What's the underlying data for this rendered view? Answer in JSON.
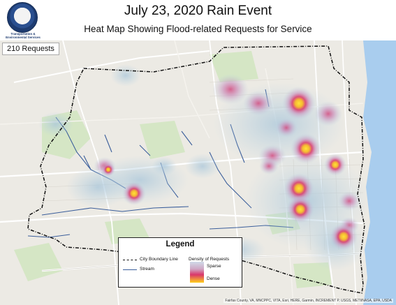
{
  "header": {
    "title": "July 23, 2020 Rain Event",
    "subtitle": "Heat Map Showing Flood-related Requests for Service",
    "logo_text": "Transportation & Environmental Services"
  },
  "map": {
    "request_count_label": "210 Requests",
    "attribution": "Fairfax County, VA, MNCPPC, VITA, Esri, HERE, Garmin, INCREMENT P, USGS, METI/NASA, EPA, USDA",
    "colors": {
      "water": "#a9cdee",
      "land": "#eceae4",
      "park": "#d5e6c5",
      "boundary": "#111111",
      "stream": "#3b5e9b",
      "heat_sparse": "#c8d9e6",
      "heat_mid": "#cf86b4",
      "heat_dense": "#ffd11c"
    }
  },
  "legend": {
    "title": "Legend",
    "boundary_label": "City Boundary Line",
    "stream_label": "Stream",
    "density_label": "Density of Requests",
    "sparse_label": "Sparse",
    "dense_label": "Dense"
  }
}
